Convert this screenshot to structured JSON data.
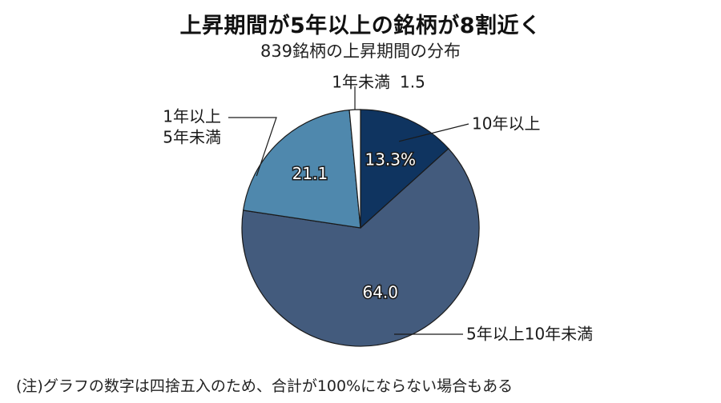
{
  "title": "上昇期間が5年以上の銘柄が8割近く",
  "subtitle": "839銘柄の上昇期間の分布",
  "footnote": "(注)グラフの数字は四捨五入のため、合計が100%にならない場合もある",
  "chart_data": {
    "type": "pie",
    "title": "上昇期間が5年以上の銘柄が8割近く",
    "subtitle": "839銘柄の上昇期間の分布",
    "unit": "%",
    "slices": [
      {
        "label": "10年以上",
        "value": 13.3,
        "display": "13.3%",
        "color": "#0f3460"
      },
      {
        "label": "5年以上10年未満",
        "value": 64.0,
        "display": "64.0",
        "color": "#435b7d"
      },
      {
        "label": "1年以上5年未満",
        "label_lines": [
          "1年以上",
          "5年未満"
        ],
        "value": 21.1,
        "display": "21.1",
        "color": "#4f88ad"
      },
      {
        "label": "1年未満",
        "value": 1.5,
        "display": "1.5",
        "color": "#ffffff"
      }
    ]
  }
}
